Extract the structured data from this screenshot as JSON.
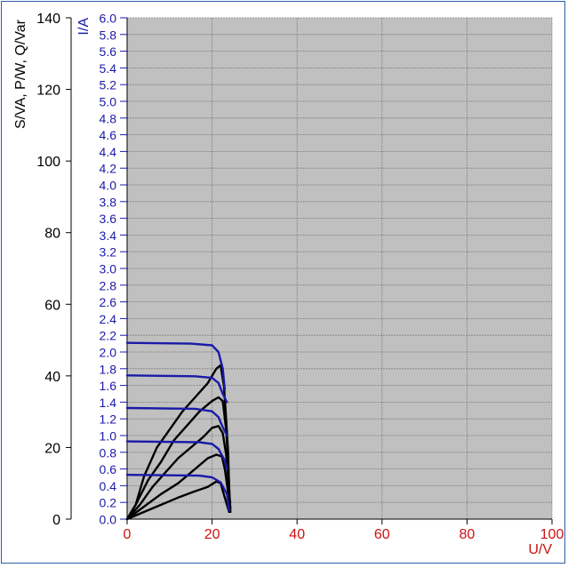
{
  "chart_data": {
    "type": "line",
    "title": "",
    "x_axis": {
      "label": "U/V",
      "range": [
        0,
        100
      ],
      "ticks": [
        0,
        20,
        40,
        60,
        80,
        100
      ],
      "color": "#cc1111"
    },
    "y_axis_left": {
      "label": "S/VA, P/W, Q/Var",
      "range": [
        0,
        140
      ],
      "ticks": [
        0,
        20,
        40,
        60,
        80,
        100,
        120,
        140
      ],
      "color": "#000000"
    },
    "y_axis_right": {
      "label": "I/A",
      "range": [
        0,
        6
      ],
      "ticks": [
        "0.0",
        "0.2",
        "0.4",
        "0.6",
        "0.8",
        "1.0",
        "1.2",
        "1.4",
        "1.6",
        "1.8",
        "2.0",
        "2.2",
        "2.4",
        "2.6",
        "2.8",
        "3.0",
        "3.2",
        "3.4",
        "3.6",
        "3.8",
        "4.0",
        "4.2",
        "4.4",
        "4.6",
        "4.8",
        "5.0",
        "5.2",
        "5.4",
        "5.6",
        "5.8",
        "6.0"
      ],
      "color": "#1a1aaa"
    },
    "grid": true,
    "plot_background": "#c0c0c0",
    "current_color": "#1a1aaa",
    "power_color": "#000000",
    "current_series": [
      {
        "axis": "I",
        "points": [
          [
            0,
            2.11
          ],
          [
            15,
            2.1
          ],
          [
            20,
            2.08
          ],
          [
            21.5,
            2.0
          ],
          [
            22.5,
            1.8
          ],
          [
            23,
            1.55
          ]
        ]
      },
      {
        "axis": "I",
        "points": [
          [
            0,
            1.72
          ],
          [
            16,
            1.71
          ],
          [
            20,
            1.69
          ],
          [
            21.5,
            1.63
          ],
          [
            22.5,
            1.5
          ],
          [
            23.5,
            1.4
          ]
        ]
      },
      {
        "axis": "I",
        "points": [
          [
            0,
            1.33
          ],
          [
            16,
            1.32
          ],
          [
            20,
            1.29
          ],
          [
            21.5,
            1.22
          ],
          [
            22.5,
            1.1
          ],
          [
            23.5,
            1.0
          ]
        ]
      },
      {
        "axis": "I",
        "points": [
          [
            0,
            0.93
          ],
          [
            17,
            0.92
          ],
          [
            20,
            0.9
          ],
          [
            21.5,
            0.84
          ],
          [
            23,
            0.7
          ],
          [
            23.5,
            0.6
          ]
        ]
      },
      {
        "axis": "I",
        "points": [
          [
            0,
            0.53
          ],
          [
            17,
            0.52
          ],
          [
            20,
            0.5
          ],
          [
            22,
            0.44
          ],
          [
            23.5,
            0.3
          ],
          [
            24,
            0.1
          ]
        ]
      }
    ],
    "power_series": [
      {
        "axis": "P",
        "points": [
          [
            0,
            0
          ],
          [
            2,
            4
          ],
          [
            4,
            12
          ],
          [
            7,
            20
          ],
          [
            10,
            25
          ],
          [
            13,
            30
          ],
          [
            16,
            34
          ],
          [
            19,
            38
          ],
          [
            21,
            42
          ],
          [
            22,
            43
          ],
          [
            22.8,
            37
          ],
          [
            23.3,
            28
          ],
          [
            23.8,
            18
          ],
          [
            24,
            8
          ],
          [
            24.3,
            2
          ]
        ]
      },
      {
        "axis": "P",
        "points": [
          [
            0,
            0
          ],
          [
            2,
            4
          ],
          [
            5,
            11
          ],
          [
            8,
            16
          ],
          [
            11,
            22
          ],
          [
            14,
            26
          ],
          [
            17,
            30
          ],
          [
            20,
            33
          ],
          [
            21.5,
            34
          ],
          [
            22.5,
            33
          ],
          [
            23.3,
            25
          ],
          [
            23.8,
            15
          ],
          [
            24.2,
            4
          ]
        ]
      },
      {
        "axis": "P",
        "points": [
          [
            0,
            0
          ],
          [
            3,
            4
          ],
          [
            6,
            9
          ],
          [
            9,
            13
          ],
          [
            12,
            17
          ],
          [
            15,
            20
          ],
          [
            18,
            23
          ],
          [
            20,
            25.5
          ],
          [
            21.5,
            26
          ],
          [
            22.5,
            24
          ],
          [
            23.3,
            18
          ],
          [
            24,
            8
          ],
          [
            24.3,
            3
          ]
        ]
      },
      {
        "axis": "P",
        "points": [
          [
            0,
            0
          ],
          [
            4,
            3.5
          ],
          [
            8,
            7
          ],
          [
            12,
            10
          ],
          [
            16,
            14
          ],
          [
            19,
            17
          ],
          [
            21,
            18
          ],
          [
            22.3,
            17.5
          ],
          [
            23,
            14
          ],
          [
            23.7,
            8
          ],
          [
            24,
            3
          ]
        ]
      },
      {
        "axis": "P",
        "points": [
          [
            0,
            0
          ],
          [
            4,
            2
          ],
          [
            8,
            4
          ],
          [
            12,
            6
          ],
          [
            16,
            7.8
          ],
          [
            19,
            9
          ],
          [
            21,
            10.5
          ],
          [
            22,
            10
          ],
          [
            23,
            6
          ],
          [
            23.5,
            4
          ],
          [
            24,
            2
          ]
        ]
      }
    ]
  }
}
